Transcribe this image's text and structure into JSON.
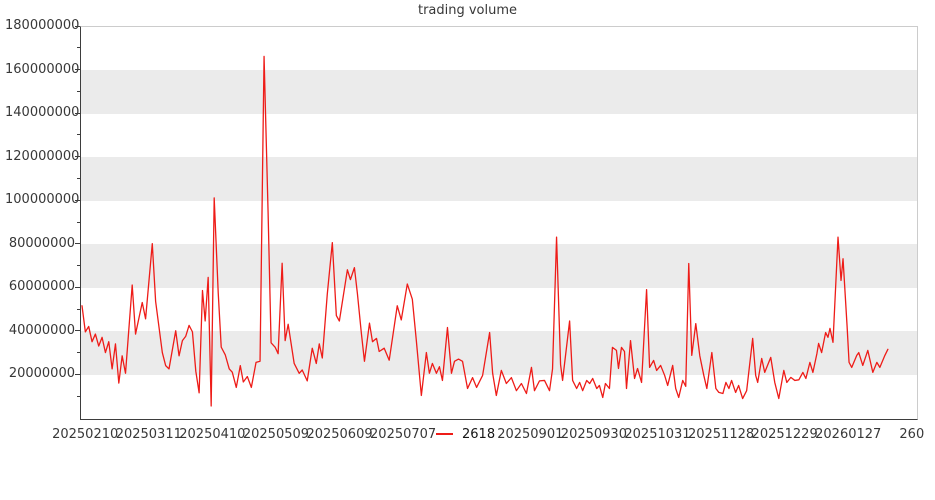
{
  "chart_data": {
    "type": "line",
    "title": "trading volume",
    "xlabel": "",
    "ylabel": "",
    "ylim": [
      0,
      180000000
    ],
    "x_day_span": 249.8,
    "grid": "alternating horizontal gray bands (20M intervals)",
    "legend": {
      "position": "bottom-center",
      "entries": [
        "2618"
      ]
    },
    "y_tick_labels": [
      "180000000",
      "160000000",
      "140000000",
      "120000000",
      "100000000",
      "80000000",
      "60000000",
      "40000000",
      "20000000"
    ],
    "y_minor_tick_step": 10000000,
    "x_ticks": [
      {
        "slot": 0,
        "label": "20250210"
      },
      {
        "slot": 1,
        "label": "20250311"
      },
      {
        "slot": 2,
        "label": "20250410"
      },
      {
        "slot": 3,
        "label": "20250509"
      },
      {
        "slot": 4,
        "label": "20250609"
      },
      {
        "slot": 5,
        "label": "20250707"
      },
      {
        "slot": 7,
        "label": "20250901"
      },
      {
        "slot": 8,
        "label": "20250930"
      },
      {
        "slot": 9,
        "label": "20251031"
      },
      {
        "slot": 10,
        "label": "20251128"
      },
      {
        "slot": 11,
        "label": "20251229"
      },
      {
        "slot": 12,
        "label": "20260127"
      },
      {
        "slot": 13,
        "label": "260"
      }
    ],
    "colors": {
      "line": "#ee1c18",
      "band": "#ebebeb",
      "axis_dark": "#3d3d3d",
      "axis_light": "#cccccc",
      "text": "#383838"
    },
    "series": [
      {
        "name": "2618",
        "color": "#ee1c18",
        "points": [
          [
            0,
            52000000
          ],
          [
            1,
            40000000
          ],
          [
            2,
            42500000
          ],
          [
            3,
            35500000
          ],
          [
            4,
            39000000
          ],
          [
            5,
            33500000
          ],
          [
            6,
            37500000
          ],
          [
            7,
            30500000
          ],
          [
            8,
            35500000
          ],
          [
            9,
            23000000
          ],
          [
            10,
            34500000
          ],
          [
            11,
            16500000
          ],
          [
            12,
            29000000
          ],
          [
            13,
            21000000
          ],
          [
            15,
            61500000
          ],
          [
            16,
            39000000
          ],
          [
            18,
            53500000
          ],
          [
            19,
            46000000
          ],
          [
            21,
            80500000
          ],
          [
            22,
            54000000
          ],
          [
            24,
            30500000
          ],
          [
            25,
            24500000
          ],
          [
            26,
            23000000
          ],
          [
            28,
            40500000
          ],
          [
            29,
            29000000
          ],
          [
            30,
            36000000
          ],
          [
            31,
            38000000
          ],
          [
            32,
            43000000
          ],
          [
            33,
            40000000
          ],
          [
            34,
            22000000
          ],
          [
            35,
            12000000
          ],
          [
            36,
            59000000
          ],
          [
            36.8,
            45000000
          ],
          [
            37.7,
            65000000
          ],
          [
            38.6,
            6000000
          ],
          [
            39.5,
            101500000
          ],
          [
            40.7,
            58000000
          ],
          [
            41.6,
            33000000
          ],
          [
            42.8,
            29500000
          ],
          [
            44,
            23000000
          ],
          [
            44.9,
            21500000
          ],
          [
            46.1,
            14500000
          ],
          [
            47.3,
            24500000
          ],
          [
            48.2,
            17000000
          ],
          [
            49.4,
            19500000
          ],
          [
            50.6,
            14500000
          ],
          [
            52,
            26000000
          ],
          [
            53.2,
            26500000
          ],
          [
            54.4,
            166500000
          ],
          [
            55.6,
            95000000
          ],
          [
            56.5,
            35000000
          ],
          [
            57.7,
            33000000
          ],
          [
            58.6,
            30000000
          ],
          [
            59.8,
            71500000
          ],
          [
            60.7,
            36000000
          ],
          [
            61.6,
            43500000
          ],
          [
            63.4,
            25500000
          ],
          [
            64.9,
            21000000
          ],
          [
            65.8,
            22500000
          ],
          [
            67.3,
            17500000
          ],
          [
            68.8,
            32500000
          ],
          [
            70,
            25500000
          ],
          [
            70.9,
            34500000
          ],
          [
            71.8,
            28000000
          ],
          [
            73.3,
            57500000
          ],
          [
            74.8,
            81000000
          ],
          [
            76,
            47500000
          ],
          [
            76.9,
            45000000
          ],
          [
            79.3,
            68500000
          ],
          [
            80.2,
            64000000
          ],
          [
            81.4,
            69500000
          ],
          [
            82.3,
            57500000
          ],
          [
            83.5,
            39000000
          ],
          [
            84.4,
            26500000
          ],
          [
            85.9,
            44000000
          ],
          [
            86.8,
            35500000
          ],
          [
            88,
            37000000
          ],
          [
            88.8,
            31000000
          ],
          [
            90.3,
            32500000
          ],
          [
            91.8,
            27000000
          ],
          [
            94.2,
            52000000
          ],
          [
            95.4,
            45500000
          ],
          [
            97.2,
            62000000
          ],
          [
            98.7,
            55000000
          ],
          [
            99.9,
            36000000
          ],
          [
            101.4,
            10800000
          ],
          [
            102.9,
            30500000
          ],
          [
            103.8,
            21000000
          ],
          [
            104.7,
            25500000
          ],
          [
            105.9,
            21000000
          ],
          [
            106.8,
            24000000
          ],
          [
            107.7,
            17700000
          ],
          [
            109.2,
            42000000
          ],
          [
            110.4,
            21000000
          ],
          [
            111.3,
            26500000
          ],
          [
            112.5,
            27500000
          ],
          [
            113.7,
            26500000
          ],
          [
            115.2,
            14000000
          ],
          [
            116.7,
            19000000
          ],
          [
            117.9,
            14500000
          ],
          [
            119.7,
            20000000
          ],
          [
            121.8,
            39700000
          ],
          [
            122.7,
            21000000
          ],
          [
            123.8,
            10800000
          ],
          [
            125.3,
            22300000
          ],
          [
            126.8,
            16300000
          ],
          [
            128.3,
            19000000
          ],
          [
            129.8,
            13000000
          ],
          [
            131.3,
            16300000
          ],
          [
            132.8,
            11700000
          ],
          [
            134.3,
            23700000
          ],
          [
            135.2,
            13000000
          ],
          [
            136.7,
            17500000
          ],
          [
            138.2,
            17700000
          ],
          [
            139.7,
            13000000
          ],
          [
            140.6,
            23000000
          ],
          [
            141.8,
            83500000
          ],
          [
            143,
            25000000
          ],
          [
            143.6,
            17700000
          ],
          [
            145.7,
            45000000
          ],
          [
            146.6,
            17700000
          ],
          [
            147.8,
            14000000
          ],
          [
            148.7,
            16800000
          ],
          [
            149.6,
            13000000
          ],
          [
            150.8,
            17700000
          ],
          [
            151.7,
            16300000
          ],
          [
            152.6,
            18600000
          ],
          [
            153.8,
            14000000
          ],
          [
            154.6,
            15400000
          ],
          [
            155.6,
            9900000
          ],
          [
            156.4,
            16300000
          ],
          [
            157.6,
            14000000
          ],
          [
            158.5,
            32900000
          ],
          [
            159.7,
            31500000
          ],
          [
            160.3,
            23200000
          ],
          [
            161.2,
            32900000
          ],
          [
            162.1,
            31000000
          ],
          [
            162.7,
            14000000
          ],
          [
            163.9,
            36000000
          ],
          [
            165.1,
            18600000
          ],
          [
            166,
            23200000
          ],
          [
            167.2,
            16800000
          ],
          [
            168.7,
            59400000
          ],
          [
            169.6,
            23700000
          ],
          [
            170.8,
            26900000
          ],
          [
            171.7,
            22300000
          ],
          [
            172.9,
            24600000
          ],
          [
            174.1,
            20000000
          ],
          [
            175,
            15400000
          ],
          [
            176.5,
            24600000
          ],
          [
            177.4,
            14000000
          ],
          [
            178.3,
            9900000
          ],
          [
            179.5,
            17700000
          ],
          [
            180.4,
            15000000
          ],
          [
            181.3,
            71400000
          ],
          [
            182.2,
            29200000
          ],
          [
            183.4,
            43800000
          ],
          [
            184.6,
            29000000
          ],
          [
            185.8,
            20000000
          ],
          [
            186.7,
            14000000
          ],
          [
            188.2,
            30500000
          ],
          [
            189.4,
            14000000
          ],
          [
            190.3,
            12200000
          ],
          [
            191.5,
            11700000
          ],
          [
            192.4,
            16800000
          ],
          [
            193.3,
            14000000
          ],
          [
            194.1,
            17700000
          ],
          [
            195.3,
            12200000
          ],
          [
            196.2,
            15400000
          ],
          [
            197.4,
            9400000
          ],
          [
            198.6,
            13000000
          ],
          [
            200.4,
            37000000
          ],
          [
            201.3,
            20000000
          ],
          [
            201.9,
            16800000
          ],
          [
            203.1,
            27800000
          ],
          [
            204,
            21400000
          ],
          [
            205.8,
            28300000
          ],
          [
            207,
            16800000
          ],
          [
            208.2,
            9400000
          ],
          [
            209.7,
            22300000
          ],
          [
            210.6,
            16800000
          ],
          [
            211.8,
            19100000
          ],
          [
            213,
            17700000
          ],
          [
            214.2,
            18000000
          ],
          [
            215.4,
            21400000
          ],
          [
            216.3,
            18600000
          ],
          [
            217.5,
            26000000
          ],
          [
            218.4,
            21400000
          ],
          [
            219.6,
            30100000
          ],
          [
            220.1,
            34700000
          ],
          [
            221,
            30500000
          ],
          [
            222.2,
            39700000
          ],
          [
            222.9,
            37500000
          ],
          [
            223.5,
            41600000
          ],
          [
            224.4,
            35200000
          ],
          [
            225.9,
            83500000
          ],
          [
            226.8,
            63600000
          ],
          [
            227.4,
            73600000
          ],
          [
            228.6,
            42900000
          ],
          [
            229.2,
            26000000
          ],
          [
            230,
            23700000
          ],
          [
            231.5,
            29200000
          ],
          [
            232.1,
            30500000
          ],
          [
            233.3,
            24600000
          ],
          [
            234.8,
            31500000
          ],
          [
            236.3,
            21400000
          ],
          [
            237.5,
            26000000
          ],
          [
            238.4,
            23700000
          ],
          [
            239.9,
            29200000
          ],
          [
            240.8,
            32000000
          ]
        ]
      }
    ]
  }
}
